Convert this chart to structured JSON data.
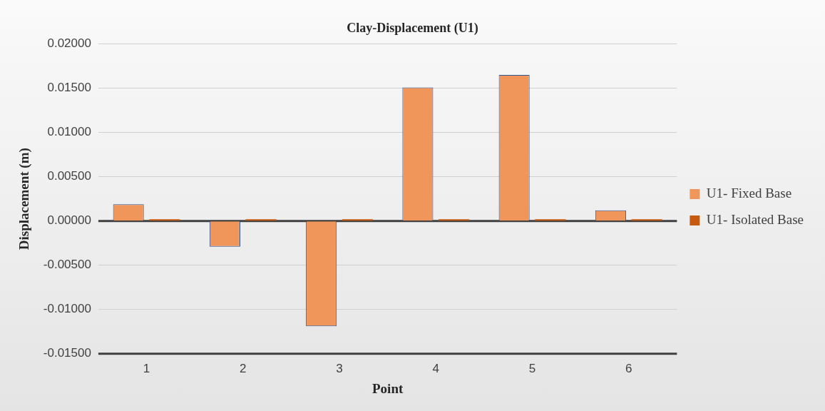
{
  "chart_data": {
    "type": "bar",
    "title": "Clay-Displacement (U1)",
    "xlabel": "Point",
    "ylabel": "Displacement (m)",
    "categories": [
      "1",
      "2",
      "3",
      "4",
      "5",
      "6"
    ],
    "series": [
      {
        "name": "U1- Fixed Base",
        "color": "#f0965a",
        "values": [
          0.0019,
          -0.0029,
          -0.0119,
          0.0151,
          0.0165,
          0.0012
        ]
      },
      {
        "name": "U1- Isolated Base",
        "color": "#c55a11",
        "values": [
          0.0002,
          0.0002,
          0.0002,
          0.0002,
          0.0002,
          0.0002
        ]
      }
    ],
    "ylim": [
      -0.015,
      0.02
    ],
    "yticks": [
      {
        "value": -0.015,
        "label": "-0.01500"
      },
      {
        "value": -0.01,
        "label": "-0.01000"
      },
      {
        "value": -0.005,
        "label": "-0.00500"
      },
      {
        "value": 0,
        "label": "0.00000"
      },
      {
        "value": 0.005,
        "label": "0.00500"
      },
      {
        "value": 0.01,
        "label": "0.01000"
      },
      {
        "value": 0.015,
        "label": "0.01500"
      },
      {
        "value": 0.02,
        "label": "0.02000"
      }
    ],
    "grid": "y",
    "legend": "right"
  }
}
